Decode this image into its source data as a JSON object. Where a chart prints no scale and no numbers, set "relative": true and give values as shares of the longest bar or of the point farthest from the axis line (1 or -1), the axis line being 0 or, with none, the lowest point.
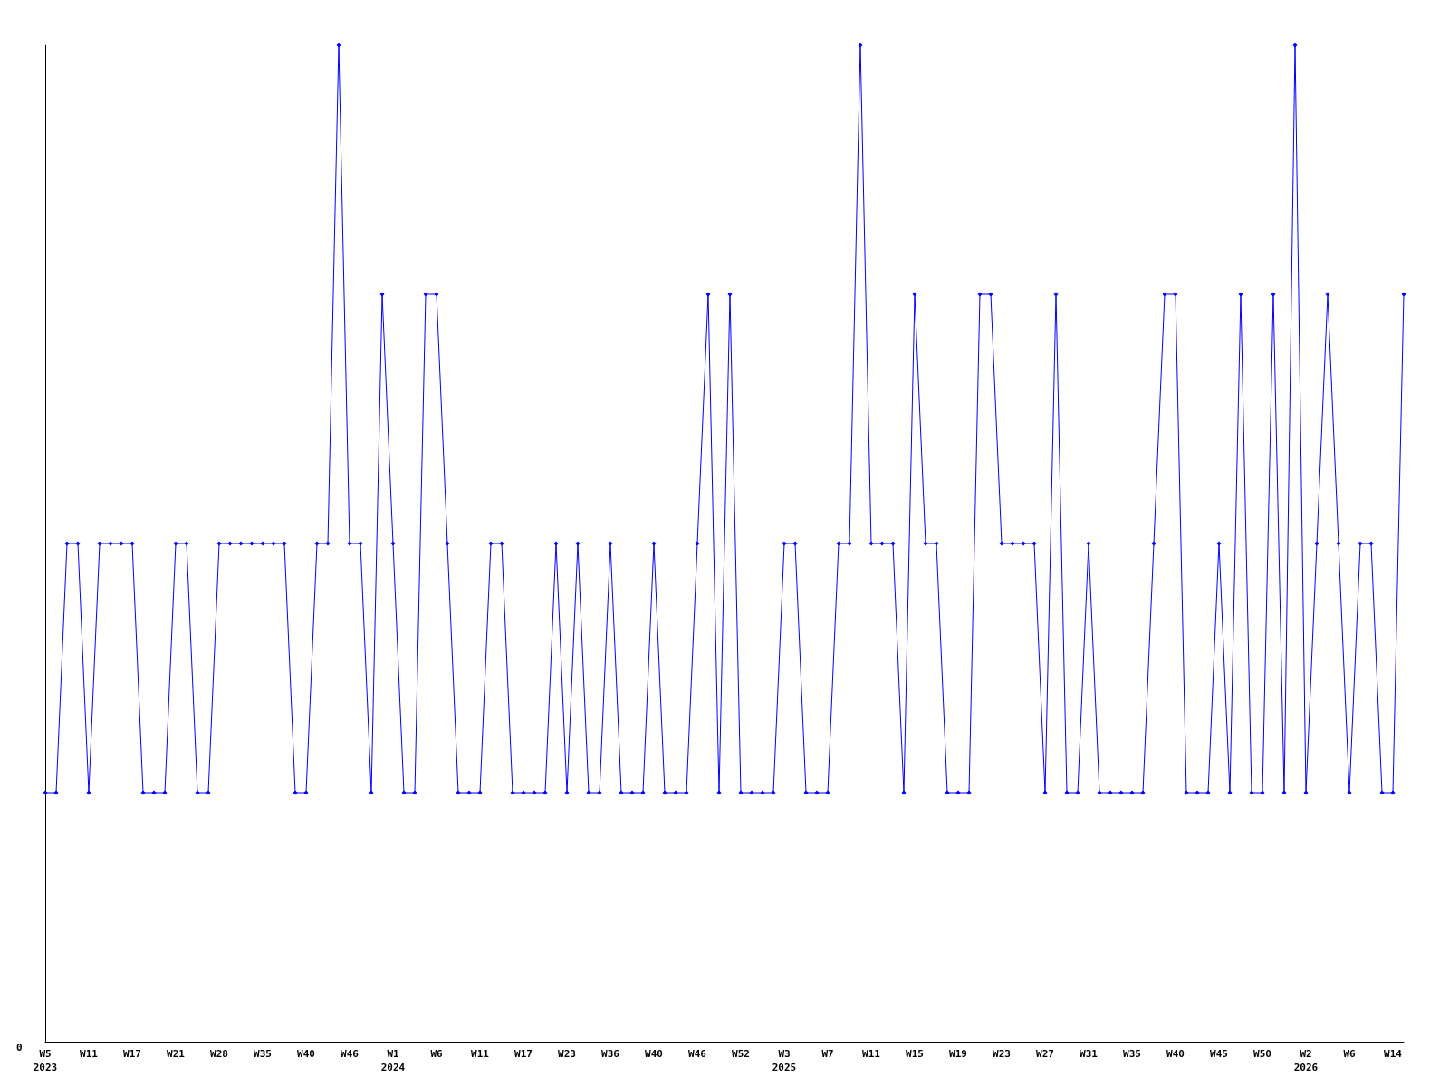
{
  "chart_data": {
    "type": "line",
    "relative": true,
    "marker": "diamond",
    "line_style": "solid",
    "annotations": [
      "0"
    ],
    "categories": [
      "W5\n2023",
      null,
      null,
      null,
      "W11",
      null,
      null,
      null,
      "W17",
      null,
      null,
      null,
      "W21",
      null,
      null,
      null,
      "W28",
      null,
      null,
      null,
      "W35",
      null,
      null,
      null,
      "W40",
      null,
      null,
      null,
      "W46",
      null,
      null,
      null,
      "W1\n2024",
      null,
      null,
      null,
      "W6",
      null,
      null,
      null,
      "W11",
      null,
      null,
      null,
      "W17",
      null,
      null,
      null,
      "W23",
      null,
      null,
      null,
      "W36",
      null,
      null,
      null,
      "W40",
      null,
      null,
      null,
      "W46",
      null,
      null,
      null,
      "W52",
      null,
      null,
      null,
      "W3\n2025",
      null,
      null,
      null,
      "W7",
      null,
      null,
      null,
      "W11",
      null,
      null,
      null,
      "W15",
      null,
      null,
      null,
      "W19",
      null,
      null,
      null,
      "W23",
      null,
      null,
      null,
      "W27",
      null,
      null,
      null,
      "W31",
      null,
      null,
      null,
      "W35",
      null,
      null,
      null,
      "W40",
      null,
      null,
      null,
      "W45",
      null,
      null,
      null,
      "W50",
      null,
      null,
      null,
      "W2\n2026",
      null,
      null,
      null,
      "W6",
      null,
      null,
      null,
      "W14",
      null
    ],
    "series": [
      {
        "color": "#0000ff",
        "values": [
          0.25,
          0.25,
          0.5,
          0.5,
          0.25,
          0.5,
          0.5,
          0.5,
          0.5,
          0.25,
          0.25,
          0.25,
          0.5,
          0.5,
          0.25,
          0.25,
          0.5,
          0.5,
          0.5,
          0.5,
          0.5,
          0.5,
          0.5,
          0.25,
          0.25,
          0.5,
          0.5,
          1,
          0.5,
          0.5,
          0.25,
          0.75,
          0.5,
          0.25,
          0.25,
          0.75,
          0.75,
          0.5,
          0.25,
          0.25,
          0.25,
          0.5,
          0.5,
          0.25,
          0.25,
          0.25,
          0.25,
          0.5,
          0.25,
          0.5,
          0.25,
          0.25,
          0.5,
          0.25,
          0.25,
          0.25,
          0.5,
          0.25,
          0.25,
          0.25,
          0.5,
          0.75,
          0.25,
          0.75,
          0.25,
          0.25,
          0.25,
          0.25,
          0.5,
          0.5,
          0.25,
          0.25,
          0.25,
          0.5,
          0.5,
          1,
          0.5,
          0.5,
          0.5,
          0.25,
          0.75,
          0.5,
          0.5,
          0.25,
          0.25,
          0.25,
          0.75,
          0.75,
          0.5,
          0.5,
          0.5,
          0.5,
          0.25,
          0.75,
          0.25,
          0.25,
          0.5,
          0.25,
          0.25,
          0.25,
          0.25,
          0.25,
          0.5,
          0.75,
          0.75,
          0.25,
          0.25,
          0.25,
          0.5,
          0.25,
          0.75,
          0.25,
          0.25,
          0.75,
          0.25,
          1,
          0.25,
          0.5,
          0.75,
          0.5,
          0.25,
          0.5,
          0.5,
          0.25,
          0.25,
          0.75
        ]
      }
    ]
  }
}
